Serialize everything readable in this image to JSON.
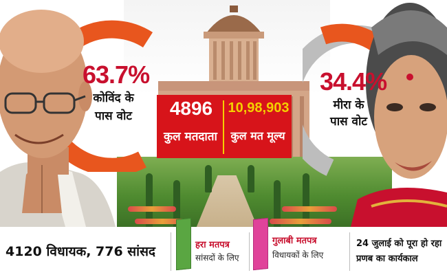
{
  "kovind": {
    "percent": "63.7%",
    "label_line1": "कोविंद के",
    "label_line2": "पास वोट",
    "share": 63.7
  },
  "meira": {
    "percent": "34.4%",
    "label_line1": "मीरा के",
    "label_line2": "पास वोट",
    "share": 34.4
  },
  "electorate": {
    "voters_count": "4896",
    "voters_label": "कुल मतदाता",
    "vote_value": "10,98,903",
    "vote_value_label": "कुल मत मूल्य"
  },
  "members": {
    "text": "4120 विधायक, 776 सांसद"
  },
  "ballots": {
    "green_title": "हरा मतपत्र",
    "green_sub": "सांसदों के लिए",
    "pink_title": "गुलाबी मतपत्र",
    "pink_sub": "विधायकों के लिए"
  },
  "tenure": {
    "line1": "24 जुलाई को पूरा हो रहा",
    "line2": "प्रणब का कार्यकाल"
  },
  "colors": {
    "ring_orange": "#e8561e",
    "ring_grey": "#bdbdbd",
    "accent_red": "#d7141a",
    "accent_yellow": "#f4d000",
    "green_ballot": "#5aa642",
    "pink_ballot": "#e0439a"
  }
}
